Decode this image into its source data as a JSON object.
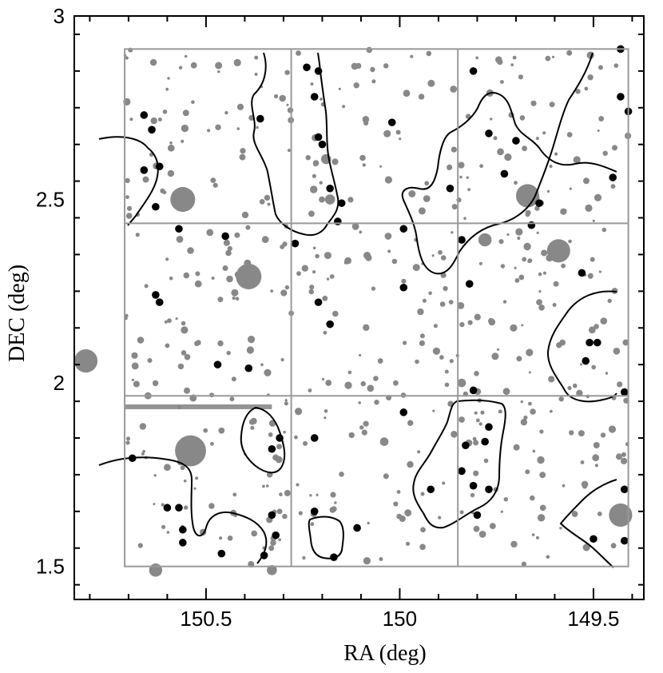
{
  "chart_data": {
    "type": "scatter",
    "title": "",
    "xlabel": "RA (deg)",
    "ylabel": "DEC (deg)",
    "x_range": [
      150.84,
      149.37
    ],
    "y_range": [
      1.41,
      3.0
    ],
    "x_ticks": [
      150.5,
      150.0,
      149.5
    ],
    "x_tick_labels": [
      "150.5",
      "150",
      "149.5"
    ],
    "y_ticks": [
      1.5,
      2.0,
      2.5,
      3.0
    ],
    "y_tick_labels": [
      "1.5",
      "2",
      "2.5",
      "3"
    ],
    "x_inverted": true,
    "grid": false,
    "survey_boundary": {
      "ra_min": 149.41,
      "ra_max": 150.71,
      "dec_min": 1.5,
      "dec_max": 2.91
    },
    "tile_grid": {
      "ra_lines": [
        150.28,
        149.85
      ],
      "dec_lines": [
        1.965,
        2.435
      ]
    },
    "colors": {
      "masked_star": "#888888",
      "object": "#000000",
      "frame": "#000000",
      "tile_line": "#999999",
      "contour": "#000000"
    },
    "series": [
      {
        "marker": "gray-circle",
        "points": [
          {
            "ra": 150.56,
            "dec": 2.5,
            "r": 0.032
          },
          {
            "ra": 150.39,
            "dec": 2.29,
            "r": 0.033
          },
          {
            "ra": 150.81,
            "dec": 2.06,
            "r": 0.03
          },
          {
            "ra": 150.54,
            "dec": 1.815,
            "r": 0.04
          },
          {
            "ra": 149.67,
            "dec": 2.51,
            "r": 0.03
          },
          {
            "ra": 149.59,
            "dec": 2.36,
            "r": 0.03
          },
          {
            "ra": 149.43,
            "dec": 1.64,
            "r": 0.03
          },
          {
            "ra": 150.63,
            "dec": 1.49,
            "r": 0.017
          },
          {
            "ra": 150.33,
            "dec": 1.49,
            "r": 0.013
          },
          {
            "ra": 150.19,
            "dec": 2.61,
            "r": 0.013
          },
          {
            "ra": 150.18,
            "dec": 2.5,
            "r": 0.013
          },
          {
            "ra": 149.78,
            "dec": 2.39,
            "r": 0.017
          },
          {
            "ra": 149.84,
            "dec": 2.0,
            "r": 0.011
          },
          {
            "ra": 150.04,
            "dec": 1.84,
            "r": 0.011
          },
          {
            "ra": 150.59,
            "dec": 2.64,
            "r": 0.009
          },
          {
            "ra": 150.49,
            "dec": 2.41,
            "r": 0.009
          },
          {
            "ra": 150.03,
            "dec": 2.4,
            "r": 0.009
          },
          {
            "ra": 150.52,
            "dec": 2.27,
            "r": 0.009
          },
          {
            "ra": 149.74,
            "dec": 2.63,
            "r": 0.009
          },
          {
            "ra": 149.64,
            "dec": 2.22,
            "r": 0.008
          },
          {
            "ra": 150.6,
            "dec": 1.77,
            "r": 0.009
          },
          {
            "ra": 150.46,
            "dec": 1.87,
            "r": 0.008
          },
          {
            "ra": 149.84,
            "dec": 1.9,
            "r": 0.008
          },
          {
            "ra": 149.76,
            "dec": 1.61,
            "r": 0.008
          },
          {
            "ra": 149.58,
            "dec": 2.11,
            "r": 0.008
          },
          {
            "ra": 150.28,
            "dec": 2.19,
            "r": 0.007
          },
          {
            "ra": 149.48,
            "dec": 2.72,
            "r": 0.007
          },
          {
            "ra": 149.94,
            "dec": 1.6,
            "r": 0.007
          },
          {
            "ra": 150.05,
            "dec": 2.06,
            "r": 0.007
          },
          {
            "ra": 150.31,
            "dec": 1.65,
            "r": 0.007
          }
        ]
      },
      {
        "marker": "black-dot",
        "points": [
          {
            "ra": 150.66,
            "dec": 2.73
          },
          {
            "ra": 150.64,
            "dec": 2.69
          },
          {
            "ra": 150.66,
            "dec": 2.58
          },
          {
            "ra": 150.62,
            "dec": 2.59
          },
          {
            "ra": 150.63,
            "dec": 2.48
          },
          {
            "ra": 150.57,
            "dec": 2.42
          },
          {
            "ra": 150.45,
            "dec": 2.4
          },
          {
            "ra": 150.63,
            "dec": 2.24
          },
          {
            "ra": 150.62,
            "dec": 2.22
          },
          {
            "ra": 150.47,
            "dec": 2.05
          },
          {
            "ra": 150.39,
            "dec": 2.04
          },
          {
            "ra": 150.36,
            "dec": 2.72
          },
          {
            "ra": 150.27,
            "dec": 2.38
          },
          {
            "ra": 150.24,
            "dec": 2.86
          },
          {
            "ra": 150.21,
            "dec": 2.85
          },
          {
            "ra": 150.22,
            "dec": 2.78
          },
          {
            "ra": 150.21,
            "dec": 2.67
          },
          {
            "ra": 150.2,
            "dec": 2.65
          },
          {
            "ra": 150.18,
            "dec": 2.53
          },
          {
            "ra": 150.15,
            "dec": 2.49
          },
          {
            "ra": 150.16,
            "dec": 2.44
          },
          {
            "ra": 150.21,
            "dec": 2.22
          },
          {
            "ra": 150.18,
            "dec": 2.16
          },
          {
            "ra": 150.02,
            "dec": 2.71
          },
          {
            "ra": 149.99,
            "dec": 2.26
          },
          {
            "ra": 149.99,
            "dec": 2.42
          },
          {
            "ra": 149.87,
            "dec": 2.53
          },
          {
            "ra": 149.84,
            "dec": 2.39
          },
          {
            "ra": 149.82,
            "dec": 2.27
          },
          {
            "ra": 149.81,
            "dec": 2.85
          },
          {
            "ra": 149.77,
            "dec": 2.68
          },
          {
            "ra": 149.73,
            "dec": 2.57
          },
          {
            "ra": 149.7,
            "dec": 2.66
          },
          {
            "ra": 149.64,
            "dec": 2.49
          },
          {
            "ra": 149.66,
            "dec": 2.43
          },
          {
            "ra": 149.53,
            "dec": 2.3
          },
          {
            "ra": 149.43,
            "dec": 2.91
          },
          {
            "ra": 149.43,
            "dec": 2.78
          },
          {
            "ra": 149.41,
            "dec": 2.74
          },
          {
            "ra": 149.45,
            "dec": 2.56
          },
          {
            "ra": 149.51,
            "dec": 2.11
          },
          {
            "ra": 149.49,
            "dec": 2.11
          },
          {
            "ra": 149.52,
            "dec": 2.06
          },
          {
            "ra": 149.42,
            "dec": 1.975
          },
          {
            "ra": 149.81,
            "dec": 1.98
          },
          {
            "ra": 149.77,
            "dec": 1.88
          },
          {
            "ra": 149.83,
            "dec": 1.83
          },
          {
            "ra": 149.78,
            "dec": 1.84
          },
          {
            "ra": 149.84,
            "dec": 1.76
          },
          {
            "ra": 149.81,
            "dec": 1.72
          },
          {
            "ra": 149.77,
            "dec": 1.71
          },
          {
            "ra": 149.8,
            "dec": 1.64
          },
          {
            "ra": 149.92,
            "dec": 1.71
          },
          {
            "ra": 149.99,
            "dec": 1.92
          },
          {
            "ra": 149.42,
            "dec": 1.71
          },
          {
            "ra": 149.42,
            "dec": 1.57
          },
          {
            "ra": 149.5,
            "dec": 1.575
          },
          {
            "ra": 150.22,
            "dec": 1.85
          },
          {
            "ra": 150.31,
            "dec": 1.85
          },
          {
            "ra": 150.33,
            "dec": 1.82
          },
          {
            "ra": 150.33,
            "dec": 1.64
          },
          {
            "ra": 150.32,
            "dec": 1.585
          },
          {
            "ra": 150.35,
            "dec": 1.53
          },
          {
            "ra": 150.46,
            "dec": 1.535
          },
          {
            "ra": 150.56,
            "dec": 1.565
          },
          {
            "ra": 150.6,
            "dec": 1.66
          },
          {
            "ra": 150.57,
            "dec": 1.66
          },
          {
            "ra": 150.56,
            "dec": 1.6
          },
          {
            "ra": 150.69,
            "dec": 1.795
          },
          {
            "ra": 150.22,
            "dec": 1.65
          },
          {
            "ra": 150.17,
            "dec": 1.525
          },
          {
            "ra": 150.11,
            "dec": 1.605
          }
        ]
      }
    ],
    "annotations": []
  }
}
